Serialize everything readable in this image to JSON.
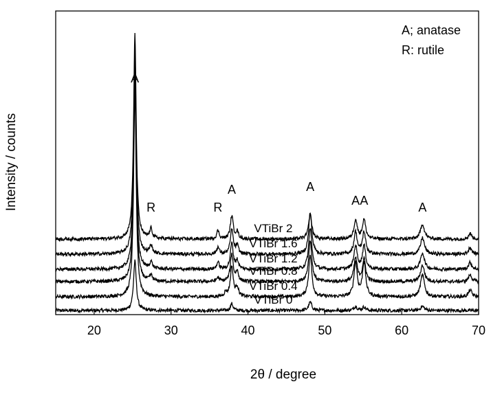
{
  "chart_data": {
    "type": "line",
    "title": "",
    "xlabel": "2θ / degree",
    "ylabel": "Intensity / counts",
    "xlim": [
      15,
      70
    ],
    "xticks": [
      "20",
      "30",
      "40",
      "50",
      "60",
      "70"
    ],
    "yticks_shown": false,
    "grid": false,
    "legend_position": "top-right",
    "legend": [
      "A; anatase",
      "R: rutile"
    ],
    "peak_positions_2theta": {
      "anatase": [
        25.3,
        37.9,
        48.1,
        54.0,
        55.1,
        62.7
      ],
      "rutile": [
        27.4,
        36.1
      ]
    },
    "series": [
      {
        "name": "VTiBr 0",
        "baseline": 0,
        "peaks": [
          {
            "x": 25.3,
            "height": 0.36,
            "width": 0.22
          },
          {
            "x": 37.9,
            "height": 0.05,
            "width": 0.2
          },
          {
            "x": 48.1,
            "height": 0.06,
            "width": 0.25
          },
          {
            "x": 54.0,
            "height": 0.03,
            "width": 0.25
          },
          {
            "x": 55.1,
            "height": 0.025,
            "width": 0.25
          },
          {
            "x": 62.7,
            "height": 0.03,
            "width": 0.3
          }
        ]
      },
      {
        "name": "VTiBr 0.4",
        "baseline": 0.1,
        "peaks": [
          {
            "x": 25.3,
            "height": 1.5,
            "width": 0.2
          },
          {
            "x": 37.1,
            "height": 0.03,
            "width": 0.2
          },
          {
            "x": 37.9,
            "height": 0.22,
            "width": 0.22
          },
          {
            "x": 38.6,
            "height": 0.07,
            "width": 0.2
          },
          {
            "x": 48.1,
            "height": 0.3,
            "width": 0.25
          },
          {
            "x": 54.0,
            "height": 0.25,
            "width": 0.25
          },
          {
            "x": 55.1,
            "height": 0.25,
            "width": 0.25
          },
          {
            "x": 62.7,
            "height": 0.16,
            "width": 0.3
          },
          {
            "x": 68.9,
            "height": 0.05,
            "width": 0.25
          }
        ]
      },
      {
        "name": "VTiBr 0.8",
        "baseline": 0.21,
        "peaks": [
          {
            "x": 25.3,
            "height": 1.5,
            "width": 0.2
          },
          {
            "x": 27.4,
            "height": 0.04,
            "width": 0.2
          },
          {
            "x": 36.1,
            "height": 0.03,
            "width": 0.2
          },
          {
            "x": 37.9,
            "height": 0.2,
            "width": 0.22
          },
          {
            "x": 38.6,
            "height": 0.07,
            "width": 0.2
          },
          {
            "x": 48.1,
            "height": 0.3,
            "width": 0.25
          },
          {
            "x": 54.0,
            "height": 0.17,
            "width": 0.25
          },
          {
            "x": 55.1,
            "height": 0.16,
            "width": 0.25
          },
          {
            "x": 62.7,
            "height": 0.12,
            "width": 0.3
          },
          {
            "x": 68.9,
            "height": 0.05,
            "width": 0.25
          }
        ]
      },
      {
        "name": "VTiBr 1.2",
        "baseline": 0.3,
        "peaks": [
          {
            "x": 25.3,
            "height": 1.5,
            "width": 0.2
          },
          {
            "x": 27.4,
            "height": 0.05,
            "width": 0.2
          },
          {
            "x": 36.1,
            "height": 0.05,
            "width": 0.2
          },
          {
            "x": 37.9,
            "height": 0.19,
            "width": 0.22
          },
          {
            "x": 38.6,
            "height": 0.06,
            "width": 0.2
          },
          {
            "x": 48.1,
            "height": 0.3,
            "width": 0.25
          },
          {
            "x": 54.0,
            "height": 0.17,
            "width": 0.25
          },
          {
            "x": 55.1,
            "height": 0.17,
            "width": 0.25
          },
          {
            "x": 62.7,
            "height": 0.12,
            "width": 0.3
          },
          {
            "x": 68.9,
            "height": 0.05,
            "width": 0.25
          }
        ]
      },
      {
        "name": "VTiBr 1.6",
        "baseline": 0.41,
        "peaks": [
          {
            "x": 25.3,
            "height": 1.5,
            "width": 0.2
          },
          {
            "x": 27.4,
            "height": 0.06,
            "width": 0.2
          },
          {
            "x": 36.1,
            "height": 0.05,
            "width": 0.2
          },
          {
            "x": 37.9,
            "height": 0.18,
            "width": 0.22
          },
          {
            "x": 38.6,
            "height": 0.06,
            "width": 0.2
          },
          {
            "x": 48.1,
            "height": 0.3,
            "width": 0.25
          },
          {
            "x": 54.0,
            "height": 0.16,
            "width": 0.25
          },
          {
            "x": 55.1,
            "height": 0.16,
            "width": 0.25
          },
          {
            "x": 62.7,
            "height": 0.12,
            "width": 0.3
          },
          {
            "x": 68.9,
            "height": 0.05,
            "width": 0.25
          }
        ]
      },
      {
        "name": "VTiBr 2",
        "baseline": 0.52,
        "peaks": [
          {
            "x": 25.3,
            "height": 1.5,
            "width": 0.2
          },
          {
            "x": 27.4,
            "height": 0.07,
            "width": 0.2
          },
          {
            "x": 36.1,
            "height": 0.06,
            "width": 0.2
          },
          {
            "x": 37.9,
            "height": 0.17,
            "width": 0.22
          },
          {
            "x": 38.6,
            "height": 0.05,
            "width": 0.2
          },
          {
            "x": 48.1,
            "height": 0.18,
            "width": 0.25
          },
          {
            "x": 54.0,
            "height": 0.14,
            "width": 0.25
          },
          {
            "x": 55.1,
            "height": 0.14,
            "width": 0.25
          },
          {
            "x": 62.7,
            "height": 0.11,
            "width": 0.3
          },
          {
            "x": 68.9,
            "height": 0.04,
            "width": 0.25
          }
        ]
      }
    ],
    "annotations": [
      {
        "text": "A",
        "x": 25.3,
        "y": 1.66
      },
      {
        "text": "R",
        "x": 27.4,
        "y": 0.72
      },
      {
        "text": "R",
        "x": 36.1,
        "y": 0.72
      },
      {
        "text": "A",
        "x": 37.9,
        "y": 0.85
      },
      {
        "text": "A",
        "x": 48.1,
        "y": 0.87
      },
      {
        "text": "A",
        "x": 54.0,
        "y": 0.77
      },
      {
        "text": "A",
        "x": 55.1,
        "y": 0.77
      },
      {
        "text": "A",
        "x": 62.7,
        "y": 0.72
      }
    ],
    "line_color": "#000000"
  }
}
